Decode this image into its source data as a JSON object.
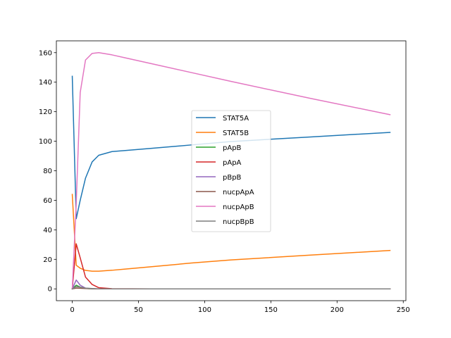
{
  "chart_data": {
    "type": "line",
    "title": "",
    "xlabel": "",
    "ylabel": "",
    "xlim": [
      -12,
      252
    ],
    "ylim": [
      -8,
      168
    ],
    "xticks": [
      0,
      50,
      100,
      150,
      200,
      250
    ],
    "yticks": [
      0,
      20,
      40,
      60,
      80,
      100,
      120,
      140,
      160
    ],
    "grid": false,
    "legend_position": "center",
    "series": [
      {
        "name": "STAT5A",
        "color": "#1f77b4",
        "x": [
          0,
          3,
          6,
          10,
          15,
          20,
          30,
          40,
          60,
          90,
          120,
          180,
          240
        ],
        "y": [
          144,
          47.5,
          60,
          75,
          86,
          90.5,
          93,
          93.7,
          95.2,
          97.5,
          99.8,
          102.9,
          106
        ]
      },
      {
        "name": "STAT5B",
        "color": "#ff7f0e",
        "x": [
          0,
          3,
          6,
          10,
          15,
          20,
          30,
          40,
          60,
          90,
          120,
          180,
          240
        ],
        "y": [
          64,
          16,
          14,
          12.5,
          12,
          12,
          12.6,
          13.4,
          15,
          17.5,
          19.6,
          22.9,
          26
        ]
      },
      {
        "name": "pApB",
        "color": "#2ca02c",
        "x": [
          0,
          3,
          6,
          10,
          15,
          20,
          30,
          60,
          120,
          240
        ],
        "y": [
          0,
          2.5,
          1.2,
          0.3,
          0.05,
          0,
          0,
          0,
          0,
          0
        ]
      },
      {
        "name": "pApA",
        "color": "#d62728",
        "x": [
          0,
          3,
          6,
          10,
          15,
          20,
          30,
          60,
          120,
          240
        ],
        "y": [
          0,
          30.5,
          21,
          8,
          3,
          0.8,
          0.1,
          0,
          0,
          0
        ]
      },
      {
        "name": "pBpB",
        "color": "#9467bd",
        "x": [
          0,
          3,
          6,
          10,
          15,
          20,
          30,
          60,
          120,
          240
        ],
        "y": [
          0,
          6,
          2.5,
          0.5,
          0.1,
          0,
          0,
          0,
          0,
          0
        ]
      },
      {
        "name": "nucpApA",
        "color": "#8c564b",
        "x": [
          0,
          3,
          6,
          10,
          15,
          20,
          30,
          60,
          120,
          240
        ],
        "y": [
          0,
          0.5,
          0.4,
          0.2,
          0.1,
          0,
          0,
          0,
          0,
          0
        ]
      },
      {
        "name": "nucpApB",
        "color": "#e377c2",
        "x": [
          0,
          3,
          6,
          10,
          15,
          20,
          30,
          40,
          60,
          90,
          120,
          180,
          240
        ],
        "y": [
          0,
          58,
          133,
          155,
          159.5,
          160,
          158.5,
          156.5,
          152.5,
          146.5,
          140.5,
          129,
          118
        ]
      },
      {
        "name": "nucpBpB",
        "color": "#7f7f7f",
        "x": [
          0,
          3,
          6,
          10,
          15,
          20,
          30,
          60,
          120,
          240
        ],
        "y": [
          0,
          1.5,
          1.2,
          0.5,
          0.2,
          0,
          0,
          0,
          0,
          0
        ]
      }
    ]
  }
}
